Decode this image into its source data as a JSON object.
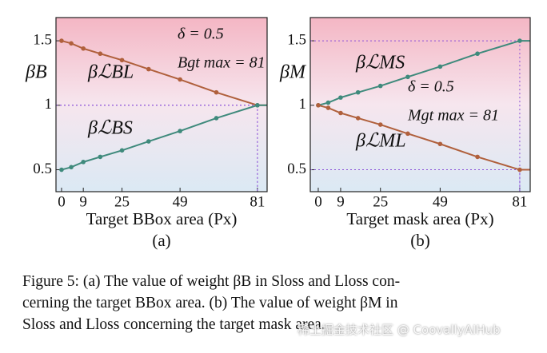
{
  "chart_data": [
    {
      "type": "line",
      "xlabel": "Target BBox area (Px)",
      "sublabel": "(a)",
      "ylabel": "βB",
      "annotations": [
        "δ = 0.5",
        "Bgt max = 81"
      ],
      "x": [
        0,
        4,
        9,
        16,
        25,
        36,
        49,
        64,
        81
      ],
      "series": [
        {
          "name": "βℒBL",
          "color": "#b0603c",
          "values": [
            1.5,
            1.48,
            1.44,
            1.4,
            1.35,
            1.28,
            1.2,
            1.1,
            1.0
          ]
        },
        {
          "name": "βℒBS",
          "color": "#3f8a7c",
          "values": [
            0.5,
            0.52,
            0.56,
            0.6,
            0.65,
            0.72,
            0.8,
            0.9,
            1.0
          ]
        }
      ],
      "xlim": [
        -2.3,
        85
      ],
      "ylim": [
        0.33,
        1.68
      ],
      "xticks": [
        0,
        9,
        25,
        49,
        81
      ],
      "yticks": [
        0.5,
        1.0,
        1.5
      ]
    },
    {
      "type": "line",
      "xlabel": "Target mask area (Px)",
      "sublabel": "(b)",
      "ylabel": "βM",
      "annotations": [
        "δ = 0.5",
        "Mgt max = 81"
      ],
      "x": [
        0,
        4,
        9,
        16,
        25,
        36,
        49,
        64,
        81
      ],
      "series": [
        {
          "name": "βℒMS",
          "color": "#3f8a7c",
          "values": [
            1.0,
            1.02,
            1.06,
            1.1,
            1.15,
            1.22,
            1.3,
            1.4,
            1.5
          ]
        },
        {
          "name": "βℒML",
          "color": "#b0603c",
          "values": [
            1.0,
            0.98,
            0.94,
            0.9,
            0.85,
            0.78,
            0.7,
            0.6,
            0.5
          ]
        }
      ],
      "xlim": [
        -3.2,
        85.2
      ],
      "ylim": [
        0.33,
        1.68
      ],
      "xticks": [
        0,
        9,
        25,
        49,
        81
      ],
      "yticks": [
        0.5,
        1.0,
        1.5
      ]
    }
  ],
  "caption": [
    "Figure 5: (a) The value of weight βB in Sloss and Lloss con-",
    "cerning the target BBox area. (b) The value of weight βM in",
    "Sloss and Lloss concerning the target mask area."
  ],
  "watermark": "稀土掘金技术社区 @ CoovallyAIHub"
}
